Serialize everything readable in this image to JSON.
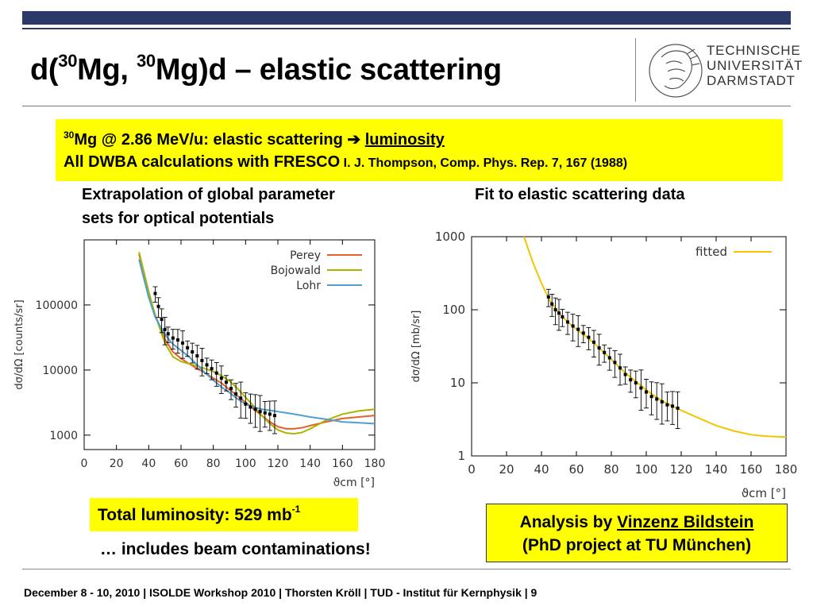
{
  "title": {
    "prefix": "d(",
    "sup1": "30",
    "mid": "Mg, ",
    "sup2": "30",
    "suffix": "Mg)d – elastic scattering"
  },
  "logo": {
    "line1": "TECHNISCHE",
    "line2": "UNIVERSITÄT",
    "line3": "DARMSTADT"
  },
  "banner": {
    "sup": "30",
    "line1_text": "Mg @ 2.86 MeV/u: elastic scattering ",
    "arrow": "➔",
    "line1_link": "luminosity",
    "line2_text": "All DWBA calculations with FRESCO",
    "line2_ref": " I. J. Thompson, Comp. Phys. Rep. 7, 167 (1988)"
  },
  "left_heading": {
    "line1": "Extrapolation of global parameter",
    "line2": "sets for optical potentials"
  },
  "right_heading": "Fit to elastic scattering data",
  "luminosity": {
    "text": "Total luminosity: 529 mb",
    "sup": "-1"
  },
  "beam_note": "… includes beam contaminations!",
  "analysis": {
    "prefix": "Analysis by ",
    "name": "Vinzenz Bildstein",
    "line2": "(PhD project at TU München)"
  },
  "footer": "December 8 - 10, 2010  |  ISOLDE Workshop 2010  | Thorsten Kröll | TUD - Institut für Kernphysik  |  9",
  "colors": {
    "perey": "#e8602c",
    "bojowald": "#a8b400",
    "lohr": "#4f9fd1",
    "fitted": "#f2c500",
    "banner": "#ffff00"
  },
  "chart_data": [
    {
      "type": "line",
      "xlabel": "ϑcm [°]",
      "ylabel": "dσ/dΩ [counts/sr]",
      "xlim": [
        0,
        180
      ],
      "ylim": [
        600,
        1000000
      ],
      "log_y": true,
      "x_ticks": [
        0,
        20,
        40,
        60,
        80,
        100,
        120,
        140,
        160,
        180
      ],
      "y_ticks": [
        1000,
        10000,
        100000
      ],
      "y_tick_labels": [
        "1000",
        "10000",
        "100000"
      ],
      "legend_position": "top-right",
      "series": [
        {
          "name": "Perey",
          "color": "#e8602c",
          "x": [
            34,
            40,
            44,
            50,
            55,
            60,
            65,
            70,
            75,
            80,
            85,
            90,
            95,
            100,
            105,
            110,
            115,
            120,
            125,
            130,
            135,
            140,
            150,
            160,
            170,
            180
          ],
          "y": [
            600000,
            150000,
            70000,
            30000,
            19000,
            15000,
            12500,
            10500,
            9000,
            7500,
            6300,
            5000,
            4000,
            3200,
            2500,
            2000,
            1600,
            1350,
            1250,
            1250,
            1300,
            1400,
            1600,
            1800,
            1900,
            2000
          ]
        },
        {
          "name": "Bojowald",
          "color": "#a8b400",
          "x": [
            34,
            40,
            44,
            50,
            55,
            60,
            65,
            70,
            75,
            80,
            85,
            90,
            95,
            100,
            105,
            110,
            115,
            120,
            125,
            130,
            135,
            140,
            150,
            160,
            170,
            180
          ],
          "y": [
            650000,
            160000,
            70000,
            26000,
            16000,
            13500,
            12500,
            11500,
            10500,
            9500,
            8200,
            6800,
            5200,
            3800,
            2800,
            2000,
            1500,
            1200,
            1080,
            1050,
            1100,
            1250,
            1700,
            2100,
            2350,
            2500
          ]
        },
        {
          "name": "Lohr",
          "color": "#4f9fd1",
          "x": [
            34,
            40,
            44,
            50,
            55,
            60,
            65,
            70,
            75,
            80,
            85,
            90,
            95,
            100,
            105,
            110,
            115,
            120,
            125,
            130,
            135,
            140,
            150,
            160,
            170,
            180
          ],
          "y": [
            500000,
            130000,
            65000,
            35000,
            25000,
            20000,
            16000,
            12000,
            9000,
            7000,
            5500,
            4500,
            3600,
            3000,
            2700,
            2500,
            2400,
            2300,
            2200,
            2100,
            2000,
            1900,
            1750,
            1600,
            1550,
            1500
          ]
        },
        {
          "name": "data",
          "x": [
            44,
            46,
            48,
            50,
            52,
            55,
            58,
            61,
            64,
            67,
            70,
            73,
            76,
            79,
            82,
            85,
            88,
            91,
            94,
            97,
            100,
            103,
            106,
            109,
            112,
            115,
            118
          ],
          "y": [
            150000,
            95000,
            60000,
            42000,
            36000,
            31000,
            29000,
            26000,
            22000,
            19000,
            16500,
            14000,
            12000,
            10500,
            9000,
            7500,
            6500,
            5200,
            4300,
            3700,
            3000,
            2700,
            2500,
            2300,
            2200,
            2100,
            2000
          ]
        }
      ]
    },
    {
      "type": "line",
      "xlabel": "ϑcm [°]",
      "ylabel": "dσ/dΩ [mb/sr]",
      "xlim": [
        0,
        180
      ],
      "ylim": [
        1,
        1000
      ],
      "log_y": true,
      "x_ticks": [
        0,
        20,
        40,
        60,
        80,
        100,
        120,
        140,
        160,
        180
      ],
      "y_ticks": [
        1,
        10,
        100,
        1000
      ],
      "y_tick_labels": [
        "1",
        "10",
        "100",
        "1000"
      ],
      "legend_position": "top-right",
      "series": [
        {
          "name": "fitted",
          "color": "#f2c500",
          "x": [
            30,
            35,
            40,
            45,
            50,
            55,
            60,
            65,
            70,
            75,
            80,
            85,
            90,
            95,
            100,
            105,
            110,
            115,
            120,
            130,
            140,
            150,
            160,
            170,
            180
          ],
          "y": [
            1000,
            450,
            230,
            130,
            90,
            68,
            54,
            44,
            35,
            27,
            21,
            16,
            12.5,
            10,
            8,
            6.5,
            5.5,
            4.8,
            4.2,
            3.3,
            2.6,
            2.2,
            1.95,
            1.85,
            1.82
          ]
        },
        {
          "name": "data",
          "x": [
            44,
            46,
            48,
            50,
            52,
            55,
            58,
            61,
            64,
            67,
            70,
            73,
            76,
            79,
            82,
            85,
            88,
            91,
            94,
            97,
            100,
            103,
            106,
            109,
            112,
            115,
            118
          ],
          "y": [
            150,
            120,
            100,
            90,
            80,
            68,
            60,
            54,
            48,
            42,
            36,
            30,
            26,
            22,
            19,
            16,
            13,
            11,
            10,
            8.5,
            7.5,
            6.5,
            6,
            5.5,
            5,
            4.8,
            4.5
          ]
        }
      ]
    }
  ]
}
